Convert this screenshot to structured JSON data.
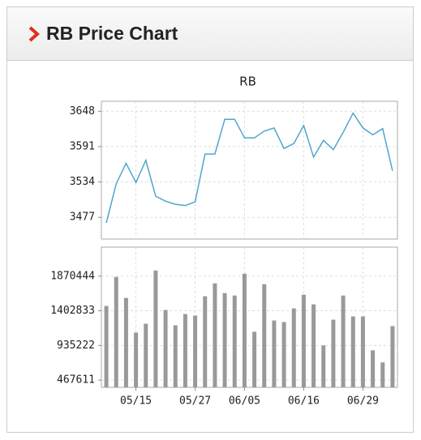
{
  "header": {
    "title": "RB Price Chart"
  },
  "chart_data": [
    {
      "type": "line",
      "title": "RB",
      "color": "#4ea6cc",
      "grid": true,
      "values": [
        3468,
        3531,
        3564,
        3533,
        3569,
        3511,
        3503,
        3498,
        3496,
        3502,
        3579,
        3579,
        3635,
        3635,
        3605,
        3605,
        3616,
        3621,
        3588,
        3596,
        3625,
        3574,
        3601,
        3586,
        3614,
        3645,
        3621,
        3610,
        3620,
        3552
      ],
      "ylim": [
        3442,
        3664
      ],
      "yticks": [
        3477,
        3534,
        3591,
        3648
      ]
    },
    {
      "type": "bar",
      "color": "#999999",
      "grid": true,
      "categories": [
        null,
        null,
        null,
        "05/15",
        null,
        null,
        null,
        null,
        null,
        "05/27",
        null,
        null,
        null,
        null,
        "06/05",
        null,
        null,
        null,
        null,
        null,
        "06/16",
        null,
        null,
        null,
        null,
        null,
        "06/29",
        null,
        null,
        null
      ],
      "values": [
        1468000,
        1860000,
        1577000,
        1109000,
        1229000,
        1947000,
        1414000,
        1207000,
        1359000,
        1338000,
        1599000,
        1773000,
        1642000,
        1609000,
        1903000,
        1120000,
        1762000,
        1272000,
        1251000,
        1435000,
        1620000,
        1490000,
        935000,
        1283000,
        1609000,
        1327000,
        1327000,
        870000,
        707000,
        1196000
      ],
      "ylim": [
        370000,
        2262000
      ],
      "yticks": [
        467611,
        935222,
        1402833,
        1870444
      ]
    }
  ]
}
